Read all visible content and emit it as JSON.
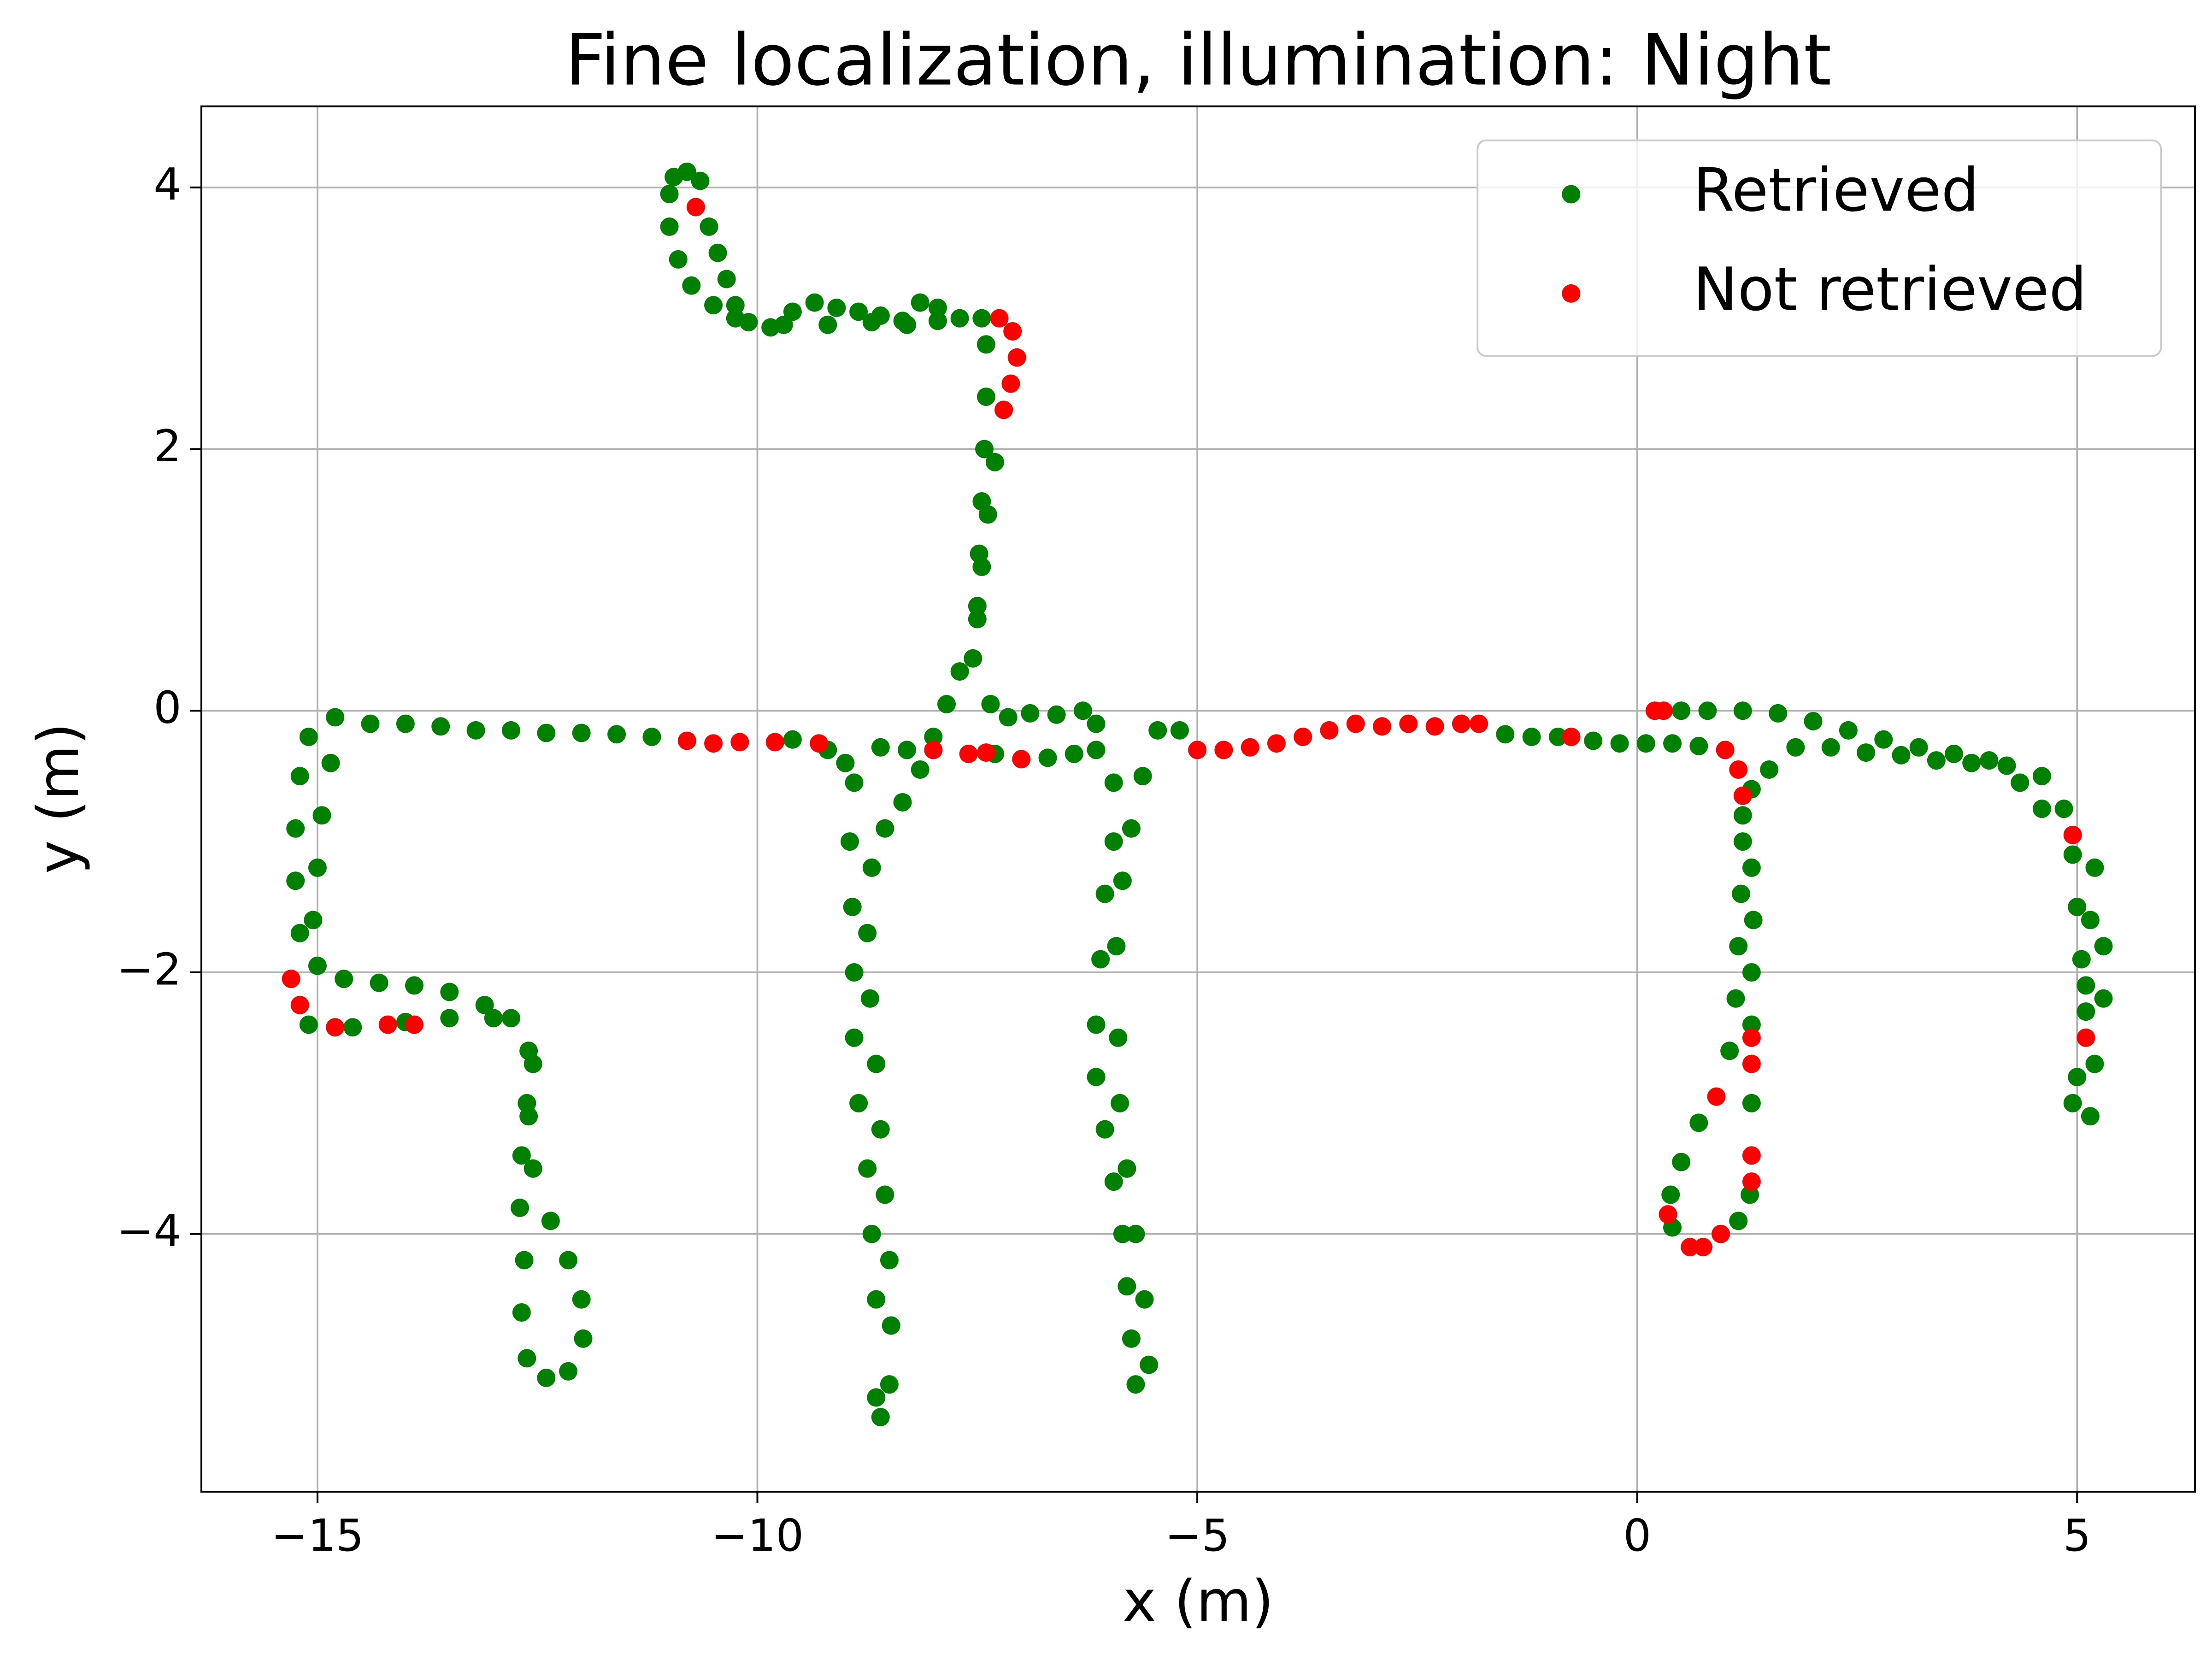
{
  "chart_data": {
    "type": "scatter",
    "title": "Fine localization, illumination: Night",
    "x_label": "x (m)",
    "y_label": "y (m)",
    "xlim": [
      -16.32,
      6.34
    ],
    "ylim": [
      -5.97,
      4.62
    ],
    "xticks": [
      {
        "value": -15,
        "label": "−15"
      },
      {
        "value": -10,
        "label": "−10"
      },
      {
        "value": -5,
        "label": "−5"
      },
      0,
      5
    ],
    "yticks": [
      {
        "value": -4,
        "label": "−4"
      },
      {
        "value": -2,
        "label": "−2"
      },
      0,
      2,
      4
    ],
    "grid": true,
    "legend": "upper right",
    "series": [
      {
        "name": "Retrieved",
        "color": "#008000",
        "x": [
          -11,
          -10.95,
          -10.8,
          -10.65,
          -10.55,
          -10.45,
          -10.35,
          -10.25,
          -10.1,
          -9.85,
          -9.6,
          -9.35,
          -9.1,
          -8.85,
          -8.6,
          -8.35,
          -8.15,
          -7.95,
          -7.7,
          -7.45,
          -11.0,
          -10.9,
          -10.75,
          -10.5,
          -10.25,
          -9.7,
          -9.2,
          -8.7,
          -8.3,
          -7.95,
          -7.4,
          -7.4,
          -7.42,
          -7.45,
          -7.48,
          -7.5,
          -7.3,
          -7.38,
          -7.45,
          -7.5,
          -7.55,
          -7.7,
          -7.85,
          -8.0,
          -8.15,
          -8.35,
          -8.55,
          -7.35,
          -7.15,
          -6.9,
          -6.6,
          -6.3,
          -6.15,
          -8.7,
          -8.75,
          -8.72,
          -8.65,
          -8.6,
          -8.55,
          -8.5,
          -8.48,
          -8.5,
          -8.6,
          -8.65,
          -8.9,
          -8.95,
          -8.92,
          -8.9,
          -8.9,
          -8.85,
          -8.75,
          -8.7,
          -8.65,
          -14.8,
          -14.4,
          -14.0,
          -13.6,
          -13.2,
          -12.8,
          -12.4,
          -12.0,
          -11.6,
          -11.2,
          -9.6,
          -9.2,
          -9.0,
          -8.6,
          -8.3,
          -7.3,
          -6.7,
          -6.4,
          -6.15,
          -15.1,
          -15.2,
          -15.25,
          -15.25,
          -15.2,
          -14.85,
          -14.95,
          -15.0,
          -15.05,
          -15.0,
          -14.7,
          -14.3,
          -13.9,
          -13.5,
          -13.1,
          -12.8,
          -12.6,
          -12.62,
          -12.68,
          -12.7,
          -12.65,
          -12.68,
          -12.62,
          -12.4,
          -12.15,
          -11.98,
          -12.0,
          -12.15,
          -12.35,
          -12.55,
          -12.6,
          -12.55,
          -13.0,
          -13.5,
          -14.0,
          -14.6,
          -15.1,
          -5.95,
          -5.95,
          -6.05,
          -6.1,
          -6.15,
          -6.15,
          -6.05,
          -5.95,
          -5.85,
          -5.8,
          -5.75,
          -5.7,
          -5.55,
          -5.6,
          -5.7,
          -5.8,
          -5.88,
          -5.9,
          -5.92,
          -5.85,
          -5.75,
          -5.62,
          -5.45,
          -5.2,
          -1.5,
          -1.2,
          -0.9,
          -0.5,
          -0.2,
          0.1,
          0.4,
          0.7,
          1.2,
          1.3,
          1.32,
          1.3,
          1.3,
          1.3,
          1.28,
          1.15,
          0.4,
          0.38,
          0.5,
          0.7,
          1.05,
          1.12,
          1.15,
          1.18,
          1.2,
          1.3,
          1.5,
          1.8,
          2.2,
          2.6,
          3.0,
          3.4,
          3.8,
          4.2,
          4.6,
          4.85,
          4.95,
          5.0,
          5.05,
          5.1,
          5.2,
          5.15,
          4.95,
          5.0,
          5.1,
          5.15,
          5.3,
          5.3,
          5.2,
          4.6,
          4.35,
          4.0,
          3.6,
          3.2,
          2.8,
          2.4,
          2.0,
          1.6,
          1.2,
          0.8,
          0.5
        ],
        "y": [
          3.95,
          4.08,
          4.12,
          4.05,
          3.7,
          3.5,
          3.3,
          3.1,
          2.97,
          2.93,
          3.05,
          3.12,
          3.08,
          3.05,
          3.02,
          2.98,
          3.12,
          3.08,
          3.0,
          3.0,
          3.7,
          3.45,
          3.25,
          3.1,
          3.0,
          2.95,
          2.95,
          2.97,
          2.95,
          2.98,
          2.8,
          2.4,
          2.0,
          1.6,
          1.2,
          0.8,
          1.9,
          1.5,
          1.1,
          0.7,
          0.4,
          0.3,
          0.05,
          -0.2,
          -0.45,
          -0.7,
          -0.9,
          0.05,
          -0.05,
          -0.02,
          -0.03,
          0.0,
          -0.1,
          -1.2,
          -1.7,
          -2.2,
          -2.7,
          -3.2,
          -3.7,
          -4.2,
          -4.7,
          -5.15,
          -5.4,
          -5.25,
          -0.55,
          -1.0,
          -1.5,
          -2.0,
          -2.5,
          -3.0,
          -3.5,
          -4.0,
          -4.5,
          -0.05,
          -0.1,
          -0.1,
          -0.12,
          -0.15,
          -0.15,
          -0.17,
          -0.17,
          -0.18,
          -0.2,
          -0.22,
          -0.3,
          -0.4,
          -0.28,
          -0.3,
          -0.33,
          -0.36,
          -0.33,
          -0.3,
          -0.2,
          -0.5,
          -0.9,
          -1.3,
          -1.7,
          -0.4,
          -0.8,
          -1.2,
          -1.6,
          -1.95,
          -2.05,
          -2.08,
          -2.1,
          -2.15,
          -2.25,
          -2.35,
          -2.6,
          -3.0,
          -3.4,
          -3.8,
          -4.2,
          -4.6,
          -4.95,
          -5.1,
          -5.05,
          -4.8,
          -4.5,
          -4.2,
          -3.9,
          -3.5,
          -3.1,
          -2.7,
          -2.35,
          -2.35,
          -2.38,
          -2.42,
          -2.4,
          -0.55,
          -1.0,
          -1.4,
          -1.9,
          -2.4,
          -2.8,
          -3.2,
          -3.6,
          -4.0,
          -4.4,
          -4.8,
          -5.15,
          -5.0,
          -4.5,
          -4.0,
          -3.5,
          -3.0,
          -2.5,
          -1.8,
          -1.3,
          -0.9,
          -0.5,
          -0.15,
          -0.15,
          -0.18,
          -0.2,
          -0.2,
          -0.23,
          -0.25,
          -0.25,
          -0.25,
          -0.27,
          -0.8,
          -1.2,
          -1.6,
          -2.0,
          -2.4,
          -3.0,
          -3.7,
          -3.9,
          -3.95,
          -3.7,
          -3.45,
          -3.15,
          -2.6,
          -2.2,
          -1.8,
          -1.4,
          -1.0,
          -0.6,
          -0.45,
          -0.28,
          -0.28,
          -0.32,
          -0.34,
          -0.38,
          -0.4,
          -0.42,
          -0.5,
          -0.75,
          -1.1,
          -1.5,
          -1.9,
          -2.3,
          -2.7,
          -3.1,
          -3.0,
          -2.8,
          -2.1,
          -1.6,
          -1.8,
          -2.2,
          -1.2,
          -0.75,
          -0.55,
          -0.38,
          -0.33,
          -0.28,
          -0.22,
          -0.15,
          -0.08,
          -0.02,
          0.0,
          0.0,
          0.0
        ]
      },
      {
        "name": "Not retrieved",
        "color": "#ff0000",
        "x": [
          -10.7,
          -7.25,
          -7.1,
          -7.05,
          -7.12,
          -7.2,
          -15.3,
          -15.2,
          -14.8,
          -14.2,
          -13.9,
          -10.8,
          -10.5,
          -10.2,
          -9.8,
          -9.3,
          -8.0,
          -7.6,
          -7.4,
          -7.0,
          -5.0,
          -4.7,
          -4.4,
          -4.1,
          -3.8,
          -3.5,
          -3.2,
          -2.9,
          -2.6,
          -2.3,
          -2.0,
          -1.8,
          -0.75,
          1.0,
          1.15,
          1.2,
          1.3,
          1.3,
          1.3,
          1.3,
          0.95,
          0.75,
          0.6,
          0.35,
          0.9,
          5.1,
          4.95,
          0.3,
          0.2
        ],
        "y": [
          3.85,
          3.0,
          2.9,
          2.7,
          2.5,
          2.3,
          -2.05,
          -2.25,
          -2.42,
          -2.4,
          -2.4,
          -0.23,
          -0.25,
          -0.24,
          -0.24,
          -0.25,
          -0.3,
          -0.33,
          -0.32,
          -0.37,
          -0.3,
          -0.3,
          -0.28,
          -0.25,
          -0.2,
          -0.15,
          -0.1,
          -0.12,
          -0.1,
          -0.12,
          -0.1,
          -0.1,
          -0.2,
          -0.3,
          -0.45,
          -0.65,
          -2.5,
          -2.7,
          -3.4,
          -3.6,
          -4.0,
          -4.1,
          -4.1,
          -3.85,
          -2.95,
          -2.5,
          -0.95,
          0.0,
          0.0
        ]
      }
    ]
  }
}
